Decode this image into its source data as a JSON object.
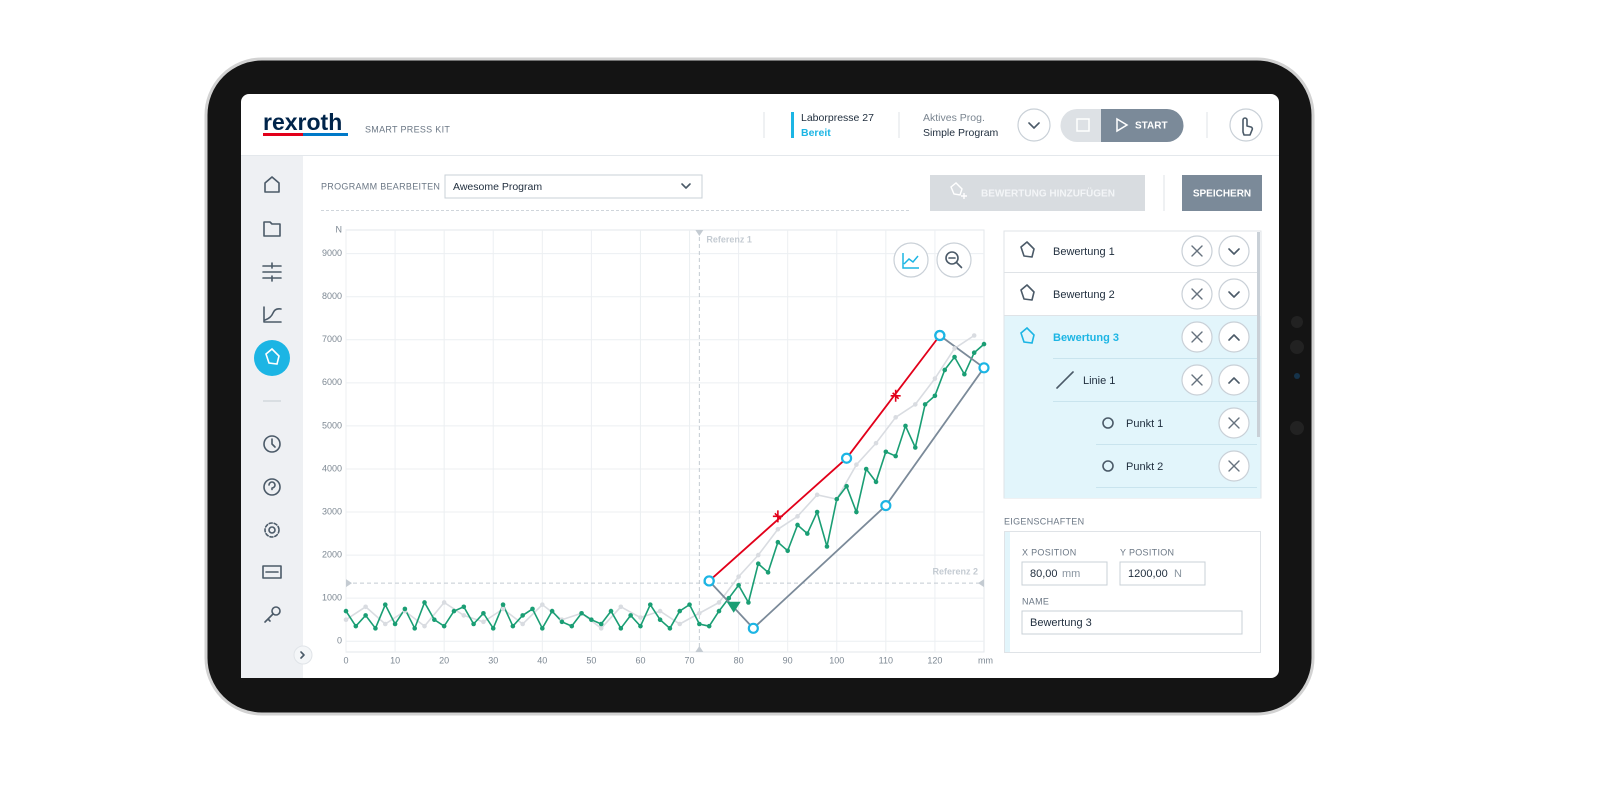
{
  "header": {
    "brand": "rexroth",
    "product": "SMART PRESS KIT",
    "machine": "Laborpresse 27",
    "status": "Bereit",
    "active_label": "Aktives Prog.",
    "active_program": "Simple Program",
    "start": "START"
  },
  "toolbar": {
    "program_label": "PROGRAMM BEARBEITEN",
    "program_select": "Awesome Program",
    "add_button": "BEWERTUNG HINZUFÜGEN",
    "save_button": "SPEICHERN"
  },
  "chart_data": {
    "type": "line",
    "x_unit": "mm",
    "y_unit": "N",
    "xlim": [
      0,
      130
    ],
    "xticks": [
      0,
      10,
      20,
      30,
      40,
      50,
      60,
      70,
      80,
      90,
      100,
      110,
      120
    ],
    "ylim": [
      -250,
      9550
    ],
    "yticks": [
      0,
      1000,
      2000,
      3000,
      4000,
      5000,
      6000,
      7000,
      8000,
      9000
    ],
    "grid": true,
    "reference_lines": [
      {
        "label": "Referenz 1",
        "axis": "x",
        "value": 72
      },
      {
        "label": "Referenz 2",
        "axis": "y",
        "value": 1350
      }
    ],
    "series": [
      {
        "color": "#d9dce1",
        "line": true,
        "marker": "dot",
        "x": [
          0,
          4,
          8,
          12,
          16,
          20,
          24,
          28,
          32,
          36,
          40,
          44,
          48,
          52,
          56,
          60,
          64,
          68,
          72,
          76,
          80,
          84,
          88,
          92,
          96,
          100,
          104,
          108,
          112,
          116,
          120,
          124,
          128
        ],
        "values": [
          500,
          800,
          400,
          700,
          350,
          900,
          600,
          450,
          750,
          400,
          850,
          500,
          650,
          300,
          800,
          550,
          700,
          400,
          650,
          900,
          1500,
          2000,
          2600,
          2900,
          3400,
          3300,
          4100,
          4600,
          5200,
          5500,
          6100,
          6800,
          7100
        ]
      },
      {
        "color": "#1a9e74",
        "line": true,
        "marker": "dot",
        "x": [
          0,
          2,
          4,
          6,
          8,
          10,
          12,
          14,
          16,
          18,
          20,
          22,
          24,
          26,
          28,
          30,
          32,
          34,
          36,
          38,
          40,
          42,
          44,
          46,
          48,
          50,
          52,
          54,
          56,
          58,
          60,
          62,
          64,
          66,
          68,
          70,
          72,
          74,
          76,
          78,
          80,
          82,
          84,
          86,
          88,
          90,
          92,
          94,
          96,
          98,
          100,
          102,
          104,
          106,
          108,
          110,
          112,
          114,
          116,
          118,
          120,
          122,
          124,
          126,
          128,
          130
        ],
        "values": [
          700,
          350,
          600,
          300,
          850,
          400,
          750,
          300,
          900,
          500,
          350,
          700,
          800,
          400,
          650,
          300,
          850,
          350,
          600,
          750,
          300,
          700,
          450,
          350,
          650,
          500,
          400,
          700,
          300,
          600,
          350,
          850,
          500,
          300,
          700,
          850,
          400,
          350,
          700,
          1000,
          1300,
          900,
          1800,
          1600,
          2300,
          2100,
          2700,
          2500,
          3000,
          2200,
          3300,
          3600,
          3000,
          4000,
          3700,
          4400,
          4300,
          5000,
          4500,
          5500,
          5700,
          6300,
          6600,
          6200,
          6700,
          6900
        ]
      },
      {
        "color": "#e2001a",
        "line": true,
        "marker": "handle",
        "x": [
          74,
          102,
          121
        ],
        "values": [
          1400,
          4250,
          7100
        ]
      },
      {
        "color": "#7b8a99",
        "line": true,
        "marker": "handle",
        "x": [
          74,
          83,
          110,
          130,
          121
        ],
        "values": [
          1400,
          300,
          3150,
          6350,
          7100
        ]
      },
      {
        "color": "#e2001a",
        "line": false,
        "marker": "cross",
        "x": [
          88,
          112
        ],
        "values": [
          2900,
          5700
        ]
      },
      {
        "color": "#1a9e74",
        "line": false,
        "marker": "triangle",
        "x": [
          79
        ],
        "values": [
          800
        ]
      }
    ]
  },
  "evaluations": {
    "items": [
      {
        "label": "Bewertung 1"
      },
      {
        "label": "Bewertung 2"
      },
      {
        "label": "Bewertung 3"
      },
      {
        "label": "Linie 1"
      },
      {
        "label": "Punkt 1"
      },
      {
        "label": "Punkt 2"
      }
    ]
  },
  "properties": {
    "title": "EIGENSCHAFTEN",
    "x_label": "X POSITION",
    "x_value": "80,00",
    "x_unit": "mm",
    "y_label": "Y POSITION",
    "y_value": "1200,00",
    "y_unit": "N",
    "name_label": "NAME",
    "name_value": "Bewertung 3"
  }
}
